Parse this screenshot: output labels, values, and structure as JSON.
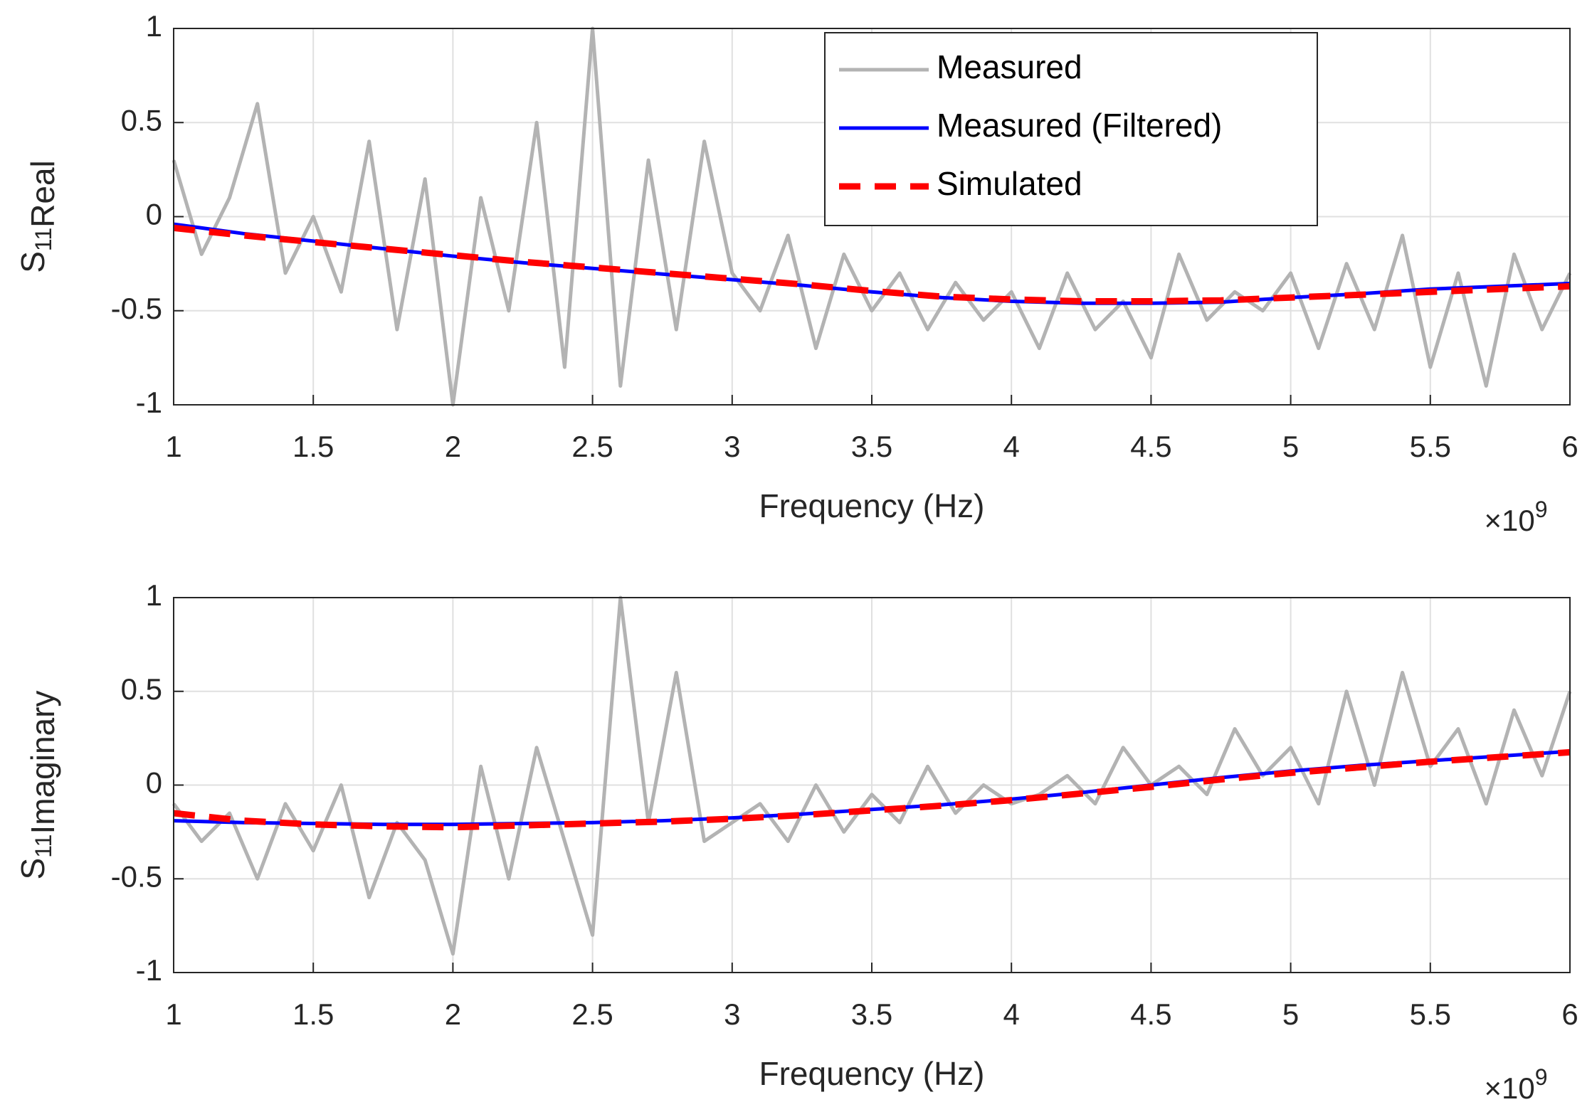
{
  "chart_data": [
    {
      "type": "line",
      "xlabel": "Frequency (Hz)",
      "x_exponent": {
        "base": "×10",
        "power": "9"
      },
      "ylabel": {
        "symbol": "S",
        "subscript": "11",
        "part": "Real"
      },
      "xlim": [
        1,
        6
      ],
      "xticks": [
        1,
        1.5,
        2,
        2.5,
        3,
        3.5,
        4,
        4.5,
        5,
        5.5,
        6
      ],
      "ylim": [
        -1,
        1
      ],
      "yticks": [
        -1,
        -0.5,
        0,
        0.5,
        1
      ],
      "grid": true,
      "legend": "top",
      "series": [
        {
          "name": "Measured",
          "color": "#b3b3b3",
          "dashed": false,
          "x": [
            1,
            1.1,
            1.2,
            1.3,
            1.4,
            1.5,
            1.6,
            1.7,
            1.8,
            1.9,
            2,
            2.1,
            2.2,
            2.3,
            2.4,
            2.5,
            2.6,
            2.7,
            2.8,
            2.9,
            3,
            3.1,
            3.2,
            3.3,
            3.4,
            3.5,
            3.6,
            3.7,
            3.8,
            3.9,
            4,
            4.1,
            4.2,
            4.3,
            4.4,
            4.5,
            4.6,
            4.7,
            4.8,
            4.9,
            5,
            5.1,
            5.2,
            5.3,
            5.4,
            5.5,
            5.6,
            5.7,
            5.8,
            5.9,
            6
          ],
          "values": [
            0.3,
            -0.2,
            0.1,
            0.6,
            -0.3,
            0.0,
            -0.4,
            0.4,
            -0.6,
            0.2,
            -1,
            0.1,
            -0.5,
            0.5,
            -0.8,
            1,
            -0.9,
            0.3,
            -0.6,
            0.4,
            -0.3,
            -0.5,
            -0.1,
            -0.7,
            -0.2,
            -0.5,
            -0.3,
            -0.6,
            -0.35,
            -0.55,
            -0.4,
            -0.7,
            -0.3,
            -0.6,
            -0.45,
            -0.75,
            -0.2,
            -0.55,
            -0.4,
            -0.5,
            -0.3,
            -0.7,
            -0.25,
            -0.6,
            -0.1,
            -0.8,
            -0.3,
            -0.9,
            -0.2,
            -0.6,
            -0.3
          ]
        },
        {
          "name": "Measured (Filtered)",
          "color": "#0000ff",
          "dashed": false,
          "x": [
            1,
            1.25,
            1.5,
            1.75,
            2,
            2.25,
            2.5,
            2.75,
            3,
            3.25,
            3.5,
            3.75,
            4,
            4.25,
            4.5,
            4.75,
            5,
            5.25,
            5.5,
            5.75,
            6
          ],
          "values": [
            -0.04,
            -0.09,
            -0.13,
            -0.17,
            -0.21,
            -0.245,
            -0.275,
            -0.305,
            -0.335,
            -0.365,
            -0.4,
            -0.43,
            -0.45,
            -0.46,
            -0.46,
            -0.455,
            -0.43,
            -0.41,
            -0.385,
            -0.37,
            -0.355
          ]
        },
        {
          "name": "Simulated",
          "color": "#ff0000",
          "dashed": true,
          "x": [
            1,
            1.25,
            1.5,
            1.75,
            2,
            2.25,
            2.5,
            2.75,
            3,
            3.25,
            3.5,
            3.75,
            4,
            4.25,
            4.5,
            4.75,
            5,
            5.25,
            5.5,
            5.75,
            6
          ],
          "values": [
            -0.06,
            -0.1,
            -0.135,
            -0.17,
            -0.205,
            -0.24,
            -0.27,
            -0.3,
            -0.33,
            -0.36,
            -0.395,
            -0.425,
            -0.44,
            -0.45,
            -0.45,
            -0.445,
            -0.43,
            -0.415,
            -0.4,
            -0.385,
            -0.37
          ]
        }
      ]
    },
    {
      "type": "line",
      "xlabel": "Frequency (Hz)",
      "x_exponent": {
        "base": "×10",
        "power": "9"
      },
      "ylabel": {
        "symbol": "S",
        "subscript": "11",
        "part": "Imaginary"
      },
      "xlim": [
        1,
        6
      ],
      "xticks": [
        1,
        1.5,
        2,
        2.5,
        3,
        3.5,
        4,
        4.5,
        5,
        5.5,
        6
      ],
      "ylim": [
        -1,
        1
      ],
      "yticks": [
        -1,
        -0.5,
        0,
        0.5,
        1
      ],
      "grid": true,
      "series": [
        {
          "color": "#b3b3b3",
          "dashed": false,
          "x": [
            1,
            1.1,
            1.2,
            1.3,
            1.4,
            1.5,
            1.6,
            1.7,
            1.8,
            1.9,
            2,
            2.1,
            2.2,
            2.3,
            2.4,
            2.5,
            2.6,
            2.7,
            2.8,
            2.9,
            3,
            3.1,
            3.2,
            3.3,
            3.4,
            3.5,
            3.6,
            3.7,
            3.8,
            3.9,
            4,
            4.1,
            4.2,
            4.3,
            4.4,
            4.5,
            4.6,
            4.7,
            4.8,
            4.9,
            5,
            5.1,
            5.2,
            5.3,
            5.4,
            5.5,
            5.6,
            5.7,
            5.8,
            5.9,
            6
          ],
          "values": [
            -0.1,
            -0.3,
            -0.15,
            -0.5,
            -0.1,
            -0.35,
            0.0,
            -0.6,
            -0.2,
            -0.4,
            -0.9,
            0.1,
            -0.5,
            0.2,
            -0.3,
            -0.8,
            1,
            -0.2,
            0.6,
            -0.3,
            -0.2,
            -0.1,
            -0.3,
            0.0,
            -0.25,
            -0.05,
            -0.2,
            0.1,
            -0.15,
            0.0,
            -0.1,
            -0.05,
            0.05,
            -0.1,
            0.2,
            0.0,
            0.1,
            -0.05,
            0.3,
            0.05,
            0.2,
            -0.1,
            0.5,
            0.0,
            0.6,
            0.1,
            0.3,
            -0.1,
            0.4,
            0.05,
            0.5
          ]
        },
        {
          "color": "#0000ff",
          "dashed": false,
          "x": [
            1,
            1.25,
            1.5,
            1.75,
            2,
            2.25,
            2.5,
            2.75,
            3,
            3.25,
            3.5,
            3.75,
            4,
            4.25,
            4.5,
            4.75,
            5,
            5.25,
            5.5,
            5.75,
            6
          ],
          "values": [
            -0.19,
            -0.2,
            -0.205,
            -0.21,
            -0.21,
            -0.205,
            -0.2,
            -0.19,
            -0.175,
            -0.155,
            -0.13,
            -0.105,
            -0.075,
            -0.04,
            0.0,
            0.04,
            0.075,
            0.105,
            0.13,
            0.155,
            0.18
          ]
        },
        {
          "color": "#ff0000",
          "dashed": true,
          "x": [
            1,
            1.25,
            1.5,
            1.75,
            2,
            2.25,
            2.5,
            2.75,
            3,
            3.25,
            3.5,
            3.75,
            4,
            4.25,
            4.5,
            4.75,
            5,
            5.25,
            5.5,
            5.75,
            6
          ],
          "values": [
            -0.15,
            -0.19,
            -0.21,
            -0.22,
            -0.225,
            -0.215,
            -0.205,
            -0.195,
            -0.18,
            -0.16,
            -0.135,
            -0.11,
            -0.08,
            -0.045,
            -0.01,
            0.03,
            0.065,
            0.095,
            0.125,
            0.15,
            0.175
          ]
        }
      ]
    }
  ]
}
